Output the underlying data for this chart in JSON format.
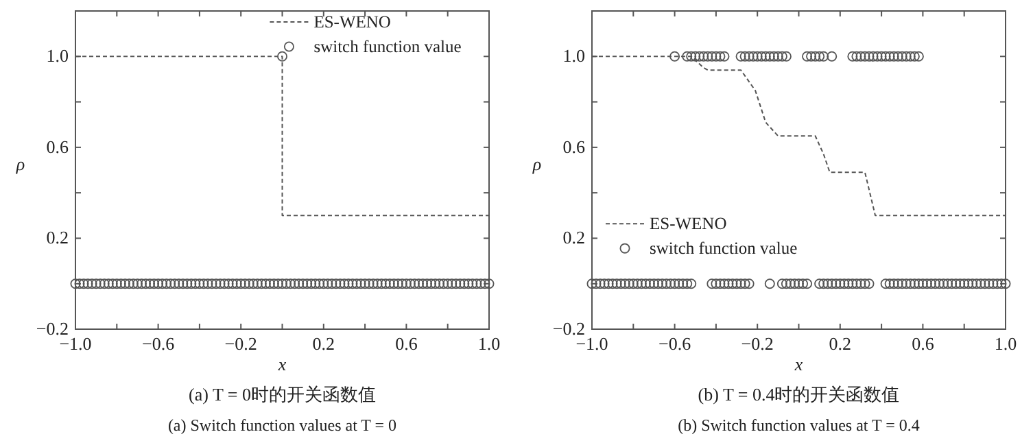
{
  "chart_data": [
    {
      "type": "line",
      "title": "(a) T = 0时的开关函数值",
      "subtitle": "(a) Switch function values at T = 0",
      "xlabel": "x",
      "ylabel": "ρ",
      "xlim": [
        -1,
        1
      ],
      "ylim": [
        -0.2,
        1.2
      ],
      "xticks": [
        {
          "value": -1,
          "label": "−1.0"
        },
        {
          "value": -0.8,
          "label": null
        },
        {
          "value": -0.6,
          "label": "−0.6"
        },
        {
          "value": -0.4,
          "label": null
        },
        {
          "value": -0.2,
          "label": "−0.2"
        },
        {
          "value": 0,
          "label": null
        },
        {
          "value": 0.2,
          "label": "0.2"
        },
        {
          "value": 0.4,
          "label": null
        },
        {
          "value": 0.6,
          "label": "0.6"
        },
        {
          "value": 0.8,
          "label": null
        },
        {
          "value": 1,
          "label": "1.0"
        }
      ],
      "yticks": [
        {
          "value": -0.2,
          "label": "−0.2"
        },
        {
          "value": 0,
          "label": null
        },
        {
          "value": 0.2,
          "label": "0.2"
        },
        {
          "value": 0.4,
          "label": null
        },
        {
          "value": 0.6,
          "label": "0.6"
        },
        {
          "value": 0.8,
          "label": null
        },
        {
          "value": 1,
          "label": "1.0"
        }
      ],
      "legend": "top right",
      "series": [
        {
          "name": "ES-WENO",
          "line_style": "dashed",
          "color": "#555555",
          "x": [
            -1,
            0,
            0,
            1
          ],
          "values": [
            1,
            1,
            0.3,
            0.3
          ]
        },
        {
          "name": "switch function value",
          "type": "scatter",
          "marker": "circle",
          "color": "#555555",
          "x": [
            -1,
            -0.98,
            -0.96,
            -0.94,
            -0.92,
            -0.9,
            -0.88,
            -0.86,
            -0.84,
            -0.82,
            -0.8,
            -0.78,
            -0.76,
            -0.74,
            -0.72,
            -0.7,
            -0.68,
            -0.66,
            -0.64,
            -0.62,
            -0.6,
            -0.58,
            -0.56,
            -0.54,
            -0.52,
            -0.5,
            -0.48,
            -0.46,
            -0.44,
            -0.42,
            -0.4,
            -0.38,
            -0.36,
            -0.34,
            -0.32,
            -0.3,
            -0.28,
            -0.26,
            -0.24,
            -0.22,
            -0.2,
            -0.18,
            -0.16,
            -0.14,
            -0.12,
            -0.1,
            -0.08,
            -0.06,
            -0.04,
            -0.02,
            0,
            0.02,
            0.04,
            0.06,
            0.08,
            0.1,
            0.12,
            0.14,
            0.16,
            0.18,
            0.2,
            0.22,
            0.24,
            0.26,
            0.28,
            0.3,
            0.32,
            0.34,
            0.36,
            0.38,
            0.4,
            0.42,
            0.44,
            0.46,
            0.48,
            0.5,
            0.52,
            0.54,
            0.56,
            0.58,
            0.6,
            0.62,
            0.64,
            0.66,
            0.68,
            0.7,
            0.72,
            0.74,
            0.76,
            0.78,
            0.8,
            0.82,
            0.84,
            0.86,
            0.88,
            0.9,
            0.92,
            0.94,
            0.96,
            0.98,
            1,
            0
          ],
          "values": [
            0,
            0,
            0,
            0,
            0,
            0,
            0,
            0,
            0,
            0,
            0,
            0,
            0,
            0,
            0,
            0,
            0,
            0,
            0,
            0,
            0,
            0,
            0,
            0,
            0,
            0,
            0,
            0,
            0,
            0,
            0,
            0,
            0,
            0,
            0,
            0,
            0,
            0,
            0,
            0,
            0,
            0,
            0,
            0,
            0,
            0,
            0,
            0,
            0,
            0,
            0,
            0,
            0,
            0,
            0,
            0,
            0,
            0,
            0,
            0,
            0,
            0,
            0,
            0,
            0,
            0,
            0,
            0,
            0,
            0,
            0,
            0,
            0,
            0,
            0,
            0,
            0,
            0,
            0,
            0,
            0,
            0,
            0,
            0,
            0,
            0,
            0,
            0,
            0,
            0,
            0,
            0,
            0,
            0,
            0,
            0,
            0,
            0,
            0,
            0,
            0,
            1
          ]
        }
      ]
    },
    {
      "type": "line",
      "title": "(b) T = 0.4时的开关函数值",
      "subtitle": "(b) Switch function values at T = 0.4",
      "xlabel": "x",
      "ylabel": "ρ",
      "xlim": [
        -1,
        1
      ],
      "ylim": [
        -0.2,
        1.2
      ],
      "xticks": [
        {
          "value": -1,
          "label": "−1.0"
        },
        {
          "value": -0.8,
          "label": null
        },
        {
          "value": -0.6,
          "label": "−0.6"
        },
        {
          "value": -0.4,
          "label": null
        },
        {
          "value": -0.2,
          "label": "−0.2"
        },
        {
          "value": 0,
          "label": null
        },
        {
          "value": 0.2,
          "label": "0.2"
        },
        {
          "value": 0.4,
          "label": null
        },
        {
          "value": 0.6,
          "label": "0.6"
        },
        {
          "value": 0.8,
          "label": null
        },
        {
          "value": 1,
          "label": "1.0"
        }
      ],
      "yticks": [
        {
          "value": -0.2,
          "label": "−0.2"
        },
        {
          "value": 0,
          "label": null
        },
        {
          "value": 0.2,
          "label": "0.2"
        },
        {
          "value": 0.4,
          "label": null
        },
        {
          "value": 0.6,
          "label": "0.6"
        },
        {
          "value": 0.8,
          "label": null
        },
        {
          "value": 1,
          "label": "1.0"
        }
      ],
      "legend": "left",
      "series": [
        {
          "name": "ES-WENO",
          "line_style": "dashed",
          "color": "#555555",
          "x": [
            -1,
            -0.52,
            -0.46,
            -0.44,
            -0.28,
            -0.21,
            -0.16,
            -0.1,
            0.08,
            0.12,
            0.15,
            0.32,
            0.37,
            1
          ],
          "values": [
            1,
            1,
            0.95,
            0.94,
            0.94,
            0.85,
            0.71,
            0.65,
            0.65,
            0.57,
            0.49,
            0.49,
            0.3,
            0.3
          ]
        },
        {
          "name": "switch function value",
          "type": "scatter",
          "marker": "circle",
          "color": "#555555",
          "x": [
            -1,
            -0.98,
            -0.96,
            -0.94,
            -0.92,
            -0.9,
            -0.88,
            -0.86,
            -0.84,
            -0.82,
            -0.8,
            -0.78,
            -0.76,
            -0.74,
            -0.72,
            -0.7,
            -0.68,
            -0.66,
            -0.64,
            -0.62,
            -0.6,
            -0.58,
            -0.56,
            -0.54,
            -0.52,
            -0.42,
            -0.4,
            -0.38,
            -0.36,
            -0.34,
            -0.32,
            -0.3,
            -0.28,
            -0.26,
            -0.24,
            -0.14,
            -0.08,
            -0.06,
            -0.04,
            -0.02,
            0,
            0.02,
            0.04,
            0.1,
            0.12,
            0.14,
            0.16,
            0.18,
            0.2,
            0.22,
            0.24,
            0.26,
            0.28,
            0.3,
            0.32,
            0.34,
            0.42,
            0.44,
            0.46,
            0.48,
            0.5,
            0.52,
            0.54,
            0.56,
            0.58,
            0.6,
            0.62,
            0.64,
            0.66,
            0.68,
            0.7,
            0.72,
            0.74,
            0.76,
            0.78,
            0.8,
            0.82,
            0.84,
            0.86,
            0.88,
            0.9,
            0.92,
            0.94,
            0.96,
            0.98,
            1,
            -0.6,
            -0.54,
            -0.52,
            -0.5,
            -0.48,
            -0.46,
            -0.44,
            -0.42,
            -0.4,
            -0.38,
            -0.36,
            -0.28,
            -0.26,
            -0.24,
            -0.22,
            -0.2,
            -0.18,
            -0.16,
            -0.14,
            -0.12,
            -0.1,
            -0.08,
            -0.06,
            0.04,
            0.06,
            0.08,
            0.1,
            0.12,
            0.16,
            0.26,
            0.28,
            0.3,
            0.32,
            0.34,
            0.36,
            0.38,
            0.4,
            0.42,
            0.44,
            0.46,
            0.48,
            0.5,
            0.52,
            0.54,
            0.56,
            0.58
          ],
          "values": [
            0,
            0,
            0,
            0,
            0,
            0,
            0,
            0,
            0,
            0,
            0,
            0,
            0,
            0,
            0,
            0,
            0,
            0,
            0,
            0,
            0,
            0,
            0,
            0,
            0,
            0,
            0,
            0,
            0,
            0,
            0,
            0,
            0,
            0,
            0,
            0,
            0,
            0,
            0,
            0,
            0,
            0,
            0,
            0,
            0,
            0,
            0,
            0,
            0,
            0,
            0,
            0,
            0,
            0,
            0,
            0,
            0,
            0,
            0,
            0,
            0,
            0,
            0,
            0,
            0,
            0,
            0,
            0,
            0,
            0,
            0,
            0,
            0,
            0,
            0,
            0,
            0,
            0,
            0,
            0,
            0,
            0,
            0,
            0,
            0,
            0,
            1,
            1,
            1,
            1,
            1,
            1,
            1,
            1,
            1,
            1,
            1,
            1,
            1,
            1,
            1,
            1,
            1,
            1,
            1,
            1,
            1,
            1,
            1,
            1,
            1,
            1,
            1,
            1,
            1,
            1,
            1,
            1,
            1,
            1,
            1,
            1,
            1,
            1,
            1,
            1,
            1,
            1,
            1,
            1,
            1,
            1
          ]
        }
      ]
    }
  ]
}
